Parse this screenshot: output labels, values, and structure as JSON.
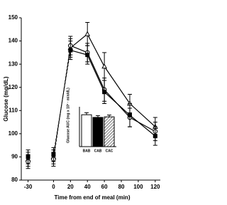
{
  "chart_data": [
    {
      "type": "line",
      "y_label": "Glucose (mg/dL)",
      "x_label": "Time from end of meal (min)",
      "x": [
        -30,
        0,
        20,
        40,
        60,
        90,
        120
      ],
      "series": [
        {
          "marker": "triangle",
          "color": "#ffffff",
          "values": [
            89,
            90,
            137,
            143,
            129,
            113,
            103
          ],
          "errors": [
            3,
            3,
            4,
            5,
            6,
            4,
            4
          ]
        },
        {
          "marker": "circle",
          "color": "#ffffff",
          "values": [
            88,
            89,
            138,
            135,
            119,
            107,
            101
          ],
          "errors": [
            3,
            3,
            4,
            4,
            5,
            4,
            4
          ]
        },
        {
          "marker": "square",
          "color": "#000000",
          "values": [
            90,
            91,
            136,
            134,
            118,
            108,
            99
          ],
          "errors": [
            3,
            3,
            4,
            4,
            5,
            5,
            4
          ]
        }
      ],
      "xlim": [
        -38,
        126
      ],
      "ylim": [
        80,
        150
      ],
      "xticks": [
        -30,
        0,
        20,
        40,
        60,
        80,
        100,
        120
      ],
      "yticks": [
        80,
        90,
        100,
        110,
        120,
        130,
        140,
        150
      ]
    },
    {
      "type": "bar",
      "y_label": "Glucose AUC (mg x 10³ · min/dL)",
      "categories": [
        "BAB",
        "CAB",
        "CAC"
      ],
      "values": [
        12,
        11,
        11.2
      ],
      "errors": [
        0.8,
        0.7,
        0.7
      ],
      "colors": [
        "#ffffff",
        "#000000",
        "hatch"
      ],
      "ylim": [
        0,
        15
      ]
    }
  ]
}
